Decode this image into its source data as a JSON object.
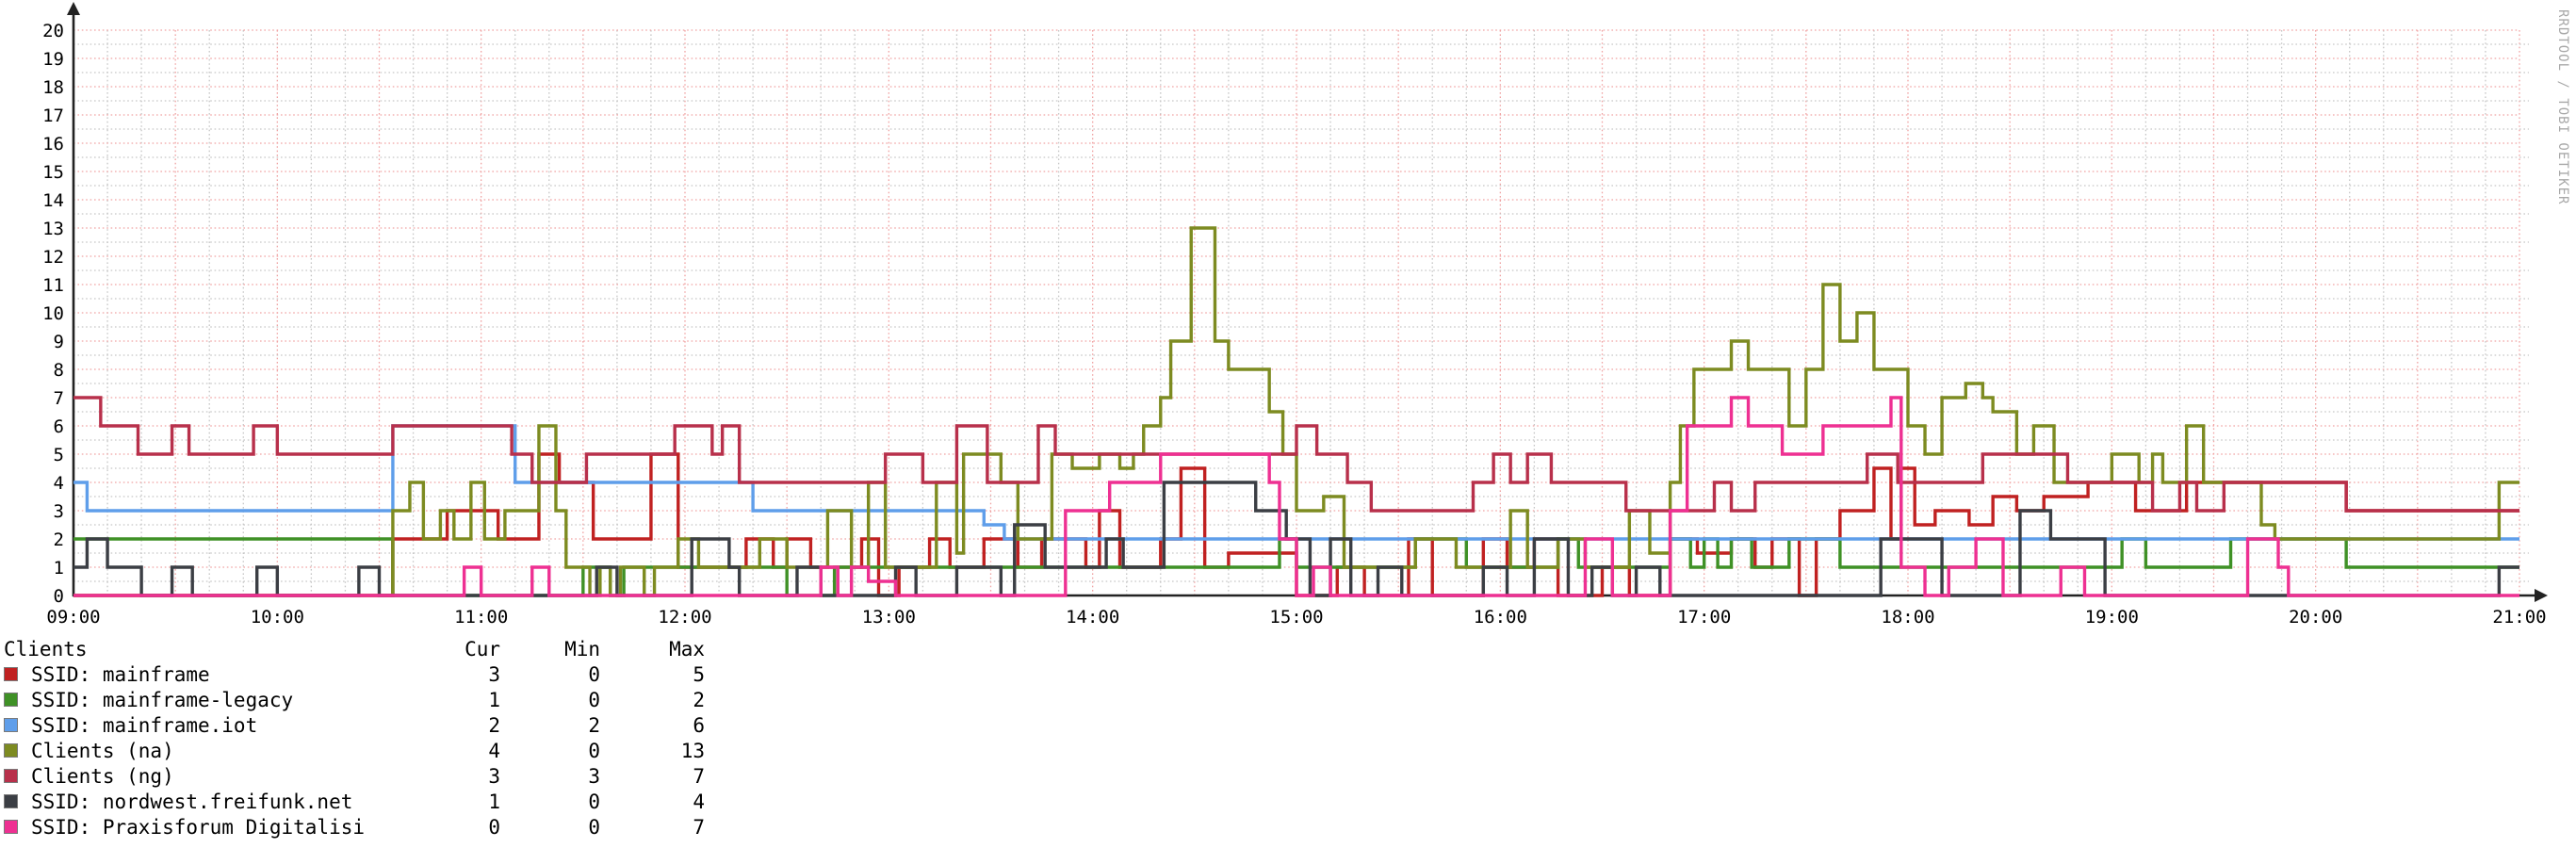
{
  "watermark": "RRDTOOL / TOBI OETIKER",
  "legend": {
    "title": "Clients",
    "columns": [
      "Cur",
      "Min",
      "Max"
    ]
  },
  "chart_data": {
    "type": "line",
    "subtype": "step-after",
    "title": "",
    "xlabel": "",
    "ylabel": "",
    "ylim": [
      0,
      20
    ],
    "y_tick_step": 1,
    "x_range_minutes": 720,
    "x_ticks": [
      "09:00",
      "10:00",
      "11:00",
      "12:00",
      "13:00",
      "14:00",
      "15:00",
      "16:00",
      "17:00",
      "18:00",
      "19:00",
      "20:00",
      "21:00"
    ],
    "y_ticks": [
      0,
      1,
      2,
      3,
      4,
      5,
      6,
      7,
      8,
      9,
      10,
      11,
      12,
      13,
      14,
      15,
      16,
      17,
      18,
      19,
      20
    ],
    "grid": {
      "major_color": "#f0a3a3",
      "minor_color": "#c6c6c6",
      "axis_color": "#222222",
      "minor_x_minutes": 10,
      "major_x_minutes": 30,
      "minor_y": 0.5,
      "major_y": 1
    },
    "legend_position": "bottom-left",
    "series": [
      {
        "name": "SSID: mainframe",
        "color": "#c02121",
        "cur": 3,
        "min": 0,
        "max": 5,
        "points": [
          [
            0,
            0
          ],
          [
            94,
            2
          ],
          [
            110,
            3
          ],
          [
            125,
            2
          ],
          [
            137,
            5
          ],
          [
            143,
            4
          ],
          [
            153,
            2
          ],
          [
            170,
            5
          ],
          [
            178,
            1
          ],
          [
            198,
            2
          ],
          [
            206,
            1
          ],
          [
            210,
            2
          ],
          [
            217,
            1
          ],
          [
            232,
            2
          ],
          [
            237,
            0
          ],
          [
            243,
            1
          ],
          [
            252,
            2
          ],
          [
            258,
            1
          ],
          [
            268,
            2
          ],
          [
            278,
            1
          ],
          [
            285,
            2
          ],
          [
            298,
            1
          ],
          [
            302,
            3
          ],
          [
            308,
            1
          ],
          [
            320,
            2
          ],
          [
            326,
            4.5
          ],
          [
            333,
            1
          ],
          [
            340,
            1.5
          ],
          [
            360,
            0
          ],
          [
            372,
            1
          ],
          [
            380,
            0
          ],
          [
            393,
            2
          ],
          [
            400,
            0
          ],
          [
            415,
            2
          ],
          [
            422,
            1
          ],
          [
            430,
            2
          ],
          [
            437,
            0
          ],
          [
            450,
            1
          ],
          [
            458,
            0
          ],
          [
            470,
            2
          ],
          [
            478,
            1.5
          ],
          [
            488,
            2
          ],
          [
            495,
            1
          ],
          [
            500,
            2
          ],
          [
            508,
            0
          ],
          [
            513,
            2
          ],
          [
            520,
            3
          ],
          [
            530,
            4.5
          ],
          [
            535,
            2
          ],
          [
            538,
            4.5
          ],
          [
            542,
            2.5
          ],
          [
            548,
            3
          ],
          [
            558,
            2.5
          ],
          [
            565,
            3.5
          ],
          [
            572,
            3
          ],
          [
            580,
            3.5
          ],
          [
            593,
            4
          ],
          [
            607,
            3
          ],
          [
            622,
            4
          ],
          [
            669,
            3
          ]
        ]
      },
      {
        "name": "SSID: mainframe-legacy",
        "color": "#3f9126",
        "cur": 1,
        "min": 0,
        "max": 2,
        "points": [
          [
            0,
            2
          ],
          [
            94,
            0
          ],
          [
            150,
            1
          ],
          [
            158,
            0
          ],
          [
            162,
            1
          ],
          [
            210,
            0
          ],
          [
            224,
            1
          ],
          [
            355,
            2
          ],
          [
            360,
            1
          ],
          [
            395,
            2
          ],
          [
            410,
            1
          ],
          [
            437,
            2
          ],
          [
            443,
            1
          ],
          [
            470,
            2
          ],
          [
            476,
            1
          ],
          [
            480,
            2
          ],
          [
            484,
            1
          ],
          [
            488,
            2
          ],
          [
            494,
            1
          ],
          [
            505,
            2
          ],
          [
            520,
            1
          ],
          [
            603,
            2
          ],
          [
            610,
            1
          ],
          [
            635,
            2
          ],
          [
            669,
            1
          ]
        ]
      },
      {
        "name": "SSID: mainframe.iot",
        "color": "#5f9eea",
        "cur": 2,
        "min": 2,
        "max": 6,
        "points": [
          [
            0,
            4
          ],
          [
            4,
            3
          ],
          [
            94,
            6
          ],
          [
            130,
            4
          ],
          [
            200,
            3
          ],
          [
            268,
            2.5
          ],
          [
            274,
            2
          ]
        ]
      },
      {
        "name": "Clients (na)",
        "color": "#7d8b21",
        "cur": 4,
        "min": 0,
        "max": 13,
        "points": [
          [
            0,
            0
          ],
          [
            94,
            3
          ],
          [
            99,
            4
          ],
          [
            103,
            2
          ],
          [
            108,
            3
          ],
          [
            112,
            2
          ],
          [
            117,
            4
          ],
          [
            121,
            2
          ],
          [
            127,
            3
          ],
          [
            137,
            6
          ],
          [
            142,
            3
          ],
          [
            145,
            1
          ],
          [
            152,
            0
          ],
          [
            155,
            1
          ],
          [
            158,
            0
          ],
          [
            161,
            1
          ],
          [
            168,
            0
          ],
          [
            171,
            1
          ],
          [
            178,
            2
          ],
          [
            184,
            1
          ],
          [
            202,
            2
          ],
          [
            210,
            1
          ],
          [
            222,
            3
          ],
          [
            229,
            1
          ],
          [
            234,
            4
          ],
          [
            239,
            1
          ],
          [
            254,
            4
          ],
          [
            260,
            1.5
          ],
          [
            262,
            5
          ],
          [
            273,
            4
          ],
          [
            278,
            2
          ],
          [
            288,
            5
          ],
          [
            294,
            4.5
          ],
          [
            302,
            5
          ],
          [
            308,
            4.5
          ],
          [
            312,
            5
          ],
          [
            315,
            6
          ],
          [
            320,
            7
          ],
          [
            323,
            9
          ],
          [
            329,
            13
          ],
          [
            336,
            9
          ],
          [
            340,
            8
          ],
          [
            352,
            6.5
          ],
          [
            356,
            5
          ],
          [
            360,
            3
          ],
          [
            368,
            3.5
          ],
          [
            374,
            1
          ],
          [
            395,
            2
          ],
          [
            407,
            1
          ],
          [
            423,
            3
          ],
          [
            428,
            1
          ],
          [
            437,
            2
          ],
          [
            445,
            1
          ],
          [
            458,
            3
          ],
          [
            464,
            1.5
          ],
          [
            470,
            4
          ],
          [
            473,
            6
          ],
          [
            477,
            8
          ],
          [
            488,
            9
          ],
          [
            493,
            8
          ],
          [
            505,
            6
          ],
          [
            510,
            8
          ],
          [
            515,
            11
          ],
          [
            520,
            9
          ],
          [
            525,
            10
          ],
          [
            530,
            8
          ],
          [
            540,
            6
          ],
          [
            545,
            5
          ],
          [
            550,
            7
          ],
          [
            557,
            7.5
          ],
          [
            562,
            7
          ],
          [
            565,
            6.5
          ],
          [
            572,
            5
          ],
          [
            577,
            6
          ],
          [
            583,
            4
          ],
          [
            600,
            5
          ],
          [
            608,
            4
          ],
          [
            612,
            5
          ],
          [
            615,
            4
          ],
          [
            622,
            6
          ],
          [
            627,
            4
          ],
          [
            644,
            2.5
          ],
          [
            648,
            2
          ],
          [
            714,
            4
          ]
        ]
      },
      {
        "name": "Clients (ng)",
        "color": "#b8304b",
        "cur": 3,
        "min": 3,
        "max": 7,
        "points": [
          [
            0,
            7
          ],
          [
            8,
            6
          ],
          [
            19,
            5
          ],
          [
            29,
            6
          ],
          [
            34,
            5
          ],
          [
            53,
            6
          ],
          [
            60,
            5
          ],
          [
            94,
            6
          ],
          [
            129,
            5
          ],
          [
            135,
            4
          ],
          [
            151,
            5
          ],
          [
            177,
            6
          ],
          [
            188,
            5
          ],
          [
            191,
            6
          ],
          [
            196,
            4
          ],
          [
            239,
            5
          ],
          [
            250,
            4
          ],
          [
            260,
            6
          ],
          [
            269,
            4
          ],
          [
            284,
            6
          ],
          [
            289,
            5
          ],
          [
            360,
            6
          ],
          [
            366,
            5
          ],
          [
            375,
            4
          ],
          [
            382,
            3
          ],
          [
            412,
            4
          ],
          [
            418,
            5
          ],
          [
            423,
            4
          ],
          [
            428,
            5
          ],
          [
            435,
            4
          ],
          [
            457,
            3
          ],
          [
            483,
            4
          ],
          [
            488,
            3
          ],
          [
            495,
            4
          ],
          [
            528,
            5
          ],
          [
            537,
            4
          ],
          [
            562,
            5
          ],
          [
            587,
            4
          ],
          [
            612,
            3
          ],
          [
            620,
            4
          ],
          [
            625,
            3
          ],
          [
            633,
            4
          ],
          [
            669,
            3
          ]
        ]
      },
      {
        "name": "SSID: nordwest.freifunk.net",
        "color": "#3b3e44",
        "cur": 1,
        "min": 0,
        "max": 4,
        "points": [
          [
            0,
            1
          ],
          [
            4,
            2
          ],
          [
            10,
            1
          ],
          [
            20,
            0
          ],
          [
            29,
            1
          ],
          [
            35,
            0
          ],
          [
            54,
            1
          ],
          [
            60,
            0
          ],
          [
            84,
            1
          ],
          [
            90,
            0
          ],
          [
            154,
            1
          ],
          [
            160,
            0
          ],
          [
            182,
            2
          ],
          [
            193,
            1
          ],
          [
            196,
            0
          ],
          [
            213,
            1
          ],
          [
            220,
            0
          ],
          [
            242,
            1
          ],
          [
            248,
            0
          ],
          [
            260,
            1
          ],
          [
            273,
            0
          ],
          [
            277,
            2.5
          ],
          [
            286,
            1
          ],
          [
            304,
            2
          ],
          [
            309,
            1
          ],
          [
            321,
            4
          ],
          [
            348,
            3
          ],
          [
            357,
            2
          ],
          [
            364,
            0
          ],
          [
            370,
            2
          ],
          [
            376,
            0
          ],
          [
            384,
            1
          ],
          [
            391,
            0
          ],
          [
            415,
            1
          ],
          [
            422,
            0
          ],
          [
            430,
            2
          ],
          [
            440,
            0
          ],
          [
            447,
            1
          ],
          [
            453,
            0
          ],
          [
            460,
            1
          ],
          [
            467,
            0
          ],
          [
            532,
            2
          ],
          [
            550,
            0
          ],
          [
            573,
            3
          ],
          [
            582,
            2
          ],
          [
            598,
            0
          ],
          [
            714,
            1
          ]
        ]
      },
      {
        "name": "SSID: Praxisforum Digitalisi",
        "color": "#ee3092",
        "cur": 0,
        "min": 0,
        "max": 7,
        "points": [
          [
            0,
            0
          ],
          [
            115,
            1
          ],
          [
            120,
            0
          ],
          [
            135,
            1
          ],
          [
            140,
            0
          ],
          [
            220,
            1
          ],
          [
            225,
            0
          ],
          [
            229,
            1
          ],
          [
            234,
            0.5
          ],
          [
            242,
            0
          ],
          [
            292,
            3
          ],
          [
            305,
            4
          ],
          [
            320,
            5
          ],
          [
            352,
            4
          ],
          [
            355,
            2
          ],
          [
            360,
            0
          ],
          [
            365,
            1
          ],
          [
            370,
            0
          ],
          [
            445,
            2
          ],
          [
            453,
            0
          ],
          [
            470,
            3
          ],
          [
            475,
            6
          ],
          [
            488,
            7
          ],
          [
            493,
            6
          ],
          [
            503,
            5
          ],
          [
            515,
            6
          ],
          [
            535,
            7
          ],
          [
            538,
            1
          ],
          [
            545,
            0
          ],
          [
            552,
            1
          ],
          [
            560,
            2
          ],
          [
            568,
            0
          ],
          [
            585,
            1
          ],
          [
            592,
            0
          ],
          [
            640,
            2
          ],
          [
            649,
            1
          ],
          [
            652,
            0
          ]
        ]
      }
    ]
  }
}
